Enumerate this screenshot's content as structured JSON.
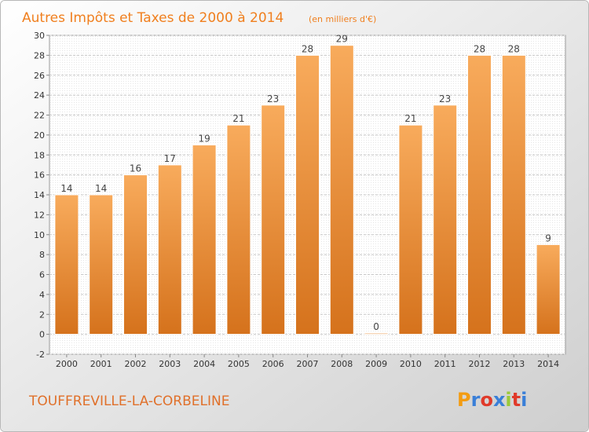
{
  "title": "Autres Impôts et Taxes de 2000 à 2014",
  "unit": "(en milliers d'€)",
  "commune": "TOUFFREVILLE-LA-CORBELINE",
  "logo": {
    "letters": [
      "P",
      "r",
      "o",
      "x",
      "i",
      "t",
      "i"
    ],
    "colors": [
      "#f39c12",
      "#3a7fd8",
      "#e03a2a",
      "#3a7fd8",
      "#9bc93a",
      "#e03a2a",
      "#3a7fd8"
    ]
  },
  "colors": {
    "bar_light": "#f8ab5c",
    "bar_dark": "#d5721c",
    "title": "#f07f1e"
  },
  "chart_data": {
    "type": "bar",
    "categories": [
      "2000",
      "2001",
      "2002",
      "2003",
      "2004",
      "2005",
      "2006",
      "2007",
      "2008",
      "2009",
      "2010",
      "2011",
      "2012",
      "2013",
      "2014"
    ],
    "values": [
      14,
      14,
      16,
      17,
      19,
      21,
      23,
      28,
      29,
      0,
      21,
      23,
      28,
      28,
      9
    ],
    "ylim": [
      -2,
      30
    ],
    "yticks": [
      -2,
      0,
      2,
      4,
      6,
      8,
      10,
      12,
      14,
      16,
      18,
      20,
      22,
      24,
      26,
      28,
      30
    ],
    "grid": true,
    "xlabel": "",
    "ylabel": ""
  }
}
